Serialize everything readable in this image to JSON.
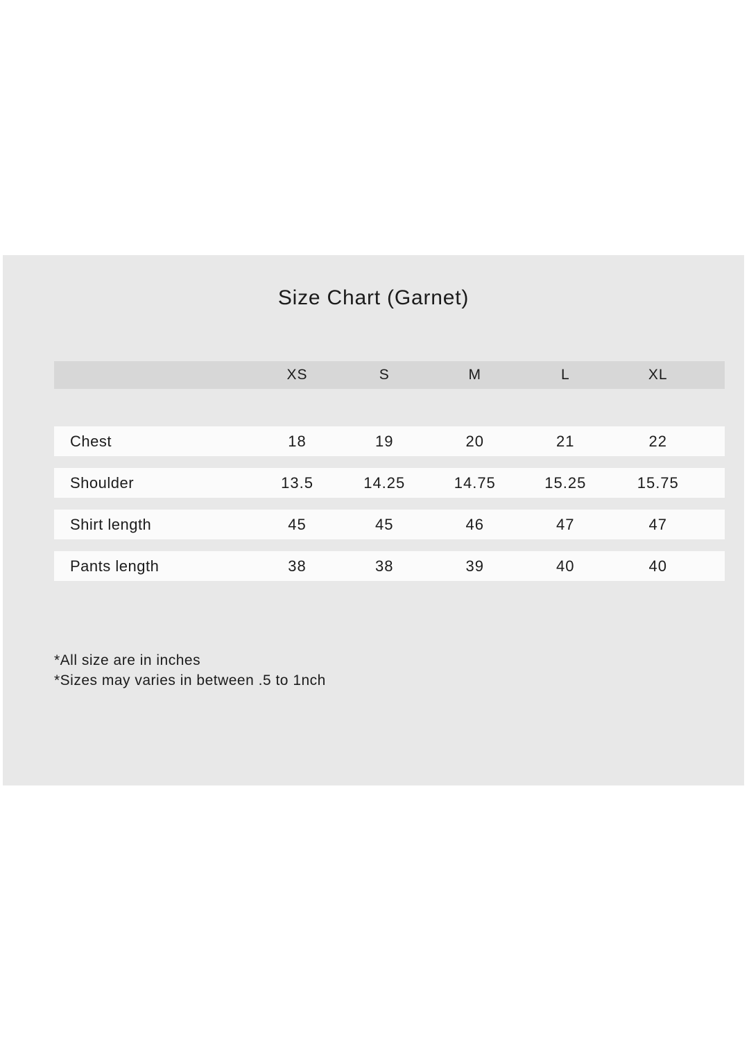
{
  "page": {
    "background": "#ffffff",
    "panel_background": "#e8e8e8",
    "header_band_background": "#d7d7d7",
    "row_background": "#fbfbfb",
    "text_color": "#1b1b1b"
  },
  "title": "Size Chart (Garnet)",
  "table": {
    "columns": [
      "XS",
      "S",
      "M",
      "L",
      "XL"
    ],
    "rows": [
      {
        "label": "Chest",
        "values": [
          "18",
          "19",
          "20",
          "21",
          "22"
        ]
      },
      {
        "label": "Shoulder",
        "values": [
          "13.5",
          "14.25",
          "14.75",
          "15.25",
          "15.75"
        ]
      },
      {
        "label": "Shirt length",
        "values": [
          "45",
          "45",
          "46",
          "47",
          "47"
        ]
      },
      {
        "label": "Pants length",
        "values": [
          "38",
          "38",
          "39",
          "40",
          "40"
        ]
      }
    ]
  },
  "footnotes": [
    "*All size are in inches",
    "*Sizes may varies in between .5 to 1nch"
  ],
  "chart_data": {
    "type": "table",
    "title": "Size Chart (Garnet)",
    "categories": [
      "XS",
      "S",
      "M",
      "L",
      "XL"
    ],
    "series": [
      {
        "name": "Chest",
        "values": [
          18,
          19,
          20,
          21,
          22
        ]
      },
      {
        "name": "Shoulder",
        "values": [
          13.5,
          14.25,
          14.75,
          15.25,
          15.75
        ]
      },
      {
        "name": "Shirt length",
        "values": [
          45,
          45,
          46,
          47,
          47
        ]
      },
      {
        "name": "Pants length",
        "values": [
          38,
          38,
          39,
          40,
          40
        ]
      }
    ],
    "units": "inches",
    "annotations": [
      "*All size are in inches",
      "*Sizes may varies in between .5 to 1nch"
    ]
  }
}
